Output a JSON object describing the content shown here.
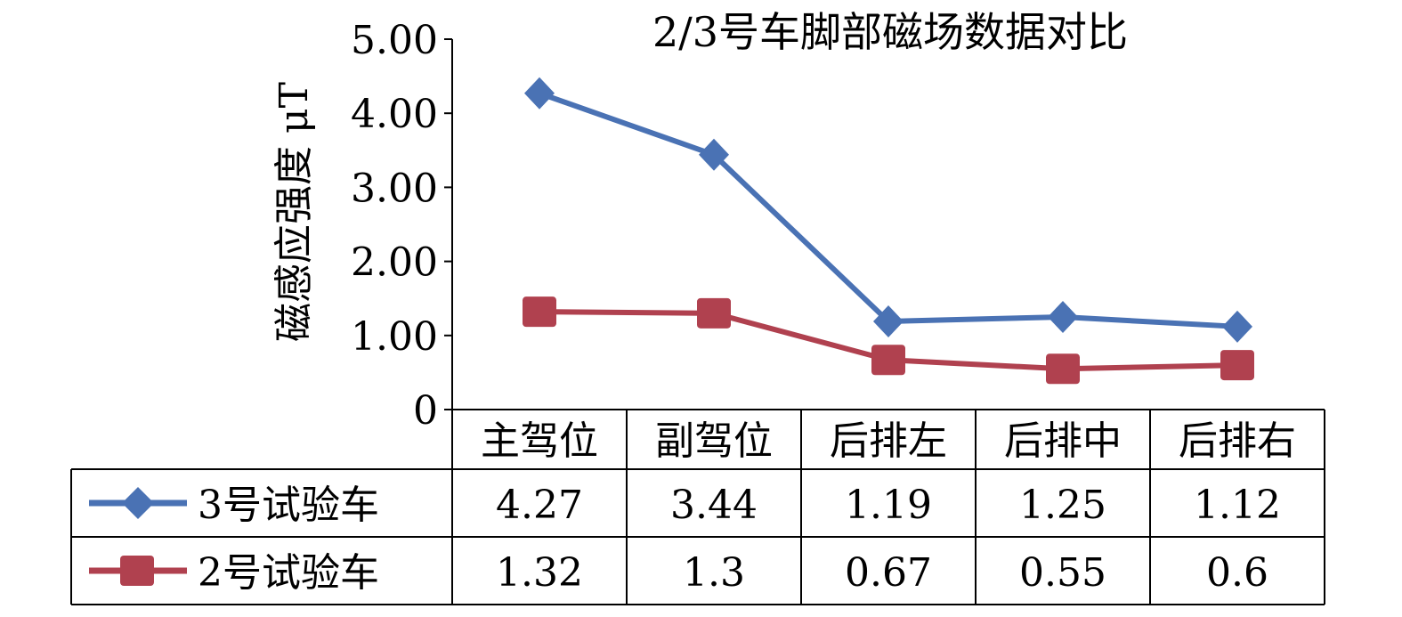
{
  "chart_data": {
    "type": "line",
    "title": "2/3号车脚部磁场数据对比",
    "ylabel": "磁感应强度 μT",
    "xlabel": "",
    "ylim": [
      0,
      5
    ],
    "yticks": [
      "0",
      "1.00",
      "2.00",
      "3.00",
      "4.00",
      "5.00"
    ],
    "categories": [
      "主驾位",
      "副驾位",
      "后排左",
      "后排中",
      "后排右"
    ],
    "series": [
      {
        "name": "3号试验车",
        "values": [
          4.27,
          3.44,
          1.19,
          1.25,
          1.12
        ],
        "labels": [
          "4.27",
          "3.44",
          "1.19",
          "1.25",
          "1.12"
        ],
        "color": "#4A72B4",
        "marker": "diamond"
      },
      {
        "name": "2号试验车",
        "values": [
          1.32,
          1.3,
          0.67,
          0.55,
          0.6
        ],
        "labels": [
          "1.32",
          "1.3",
          "0.67",
          "0.55",
          "0.6"
        ],
        "color": "#B0414F",
        "marker": "square"
      }
    ],
    "grid": false,
    "legend": "data-table-left"
  }
}
